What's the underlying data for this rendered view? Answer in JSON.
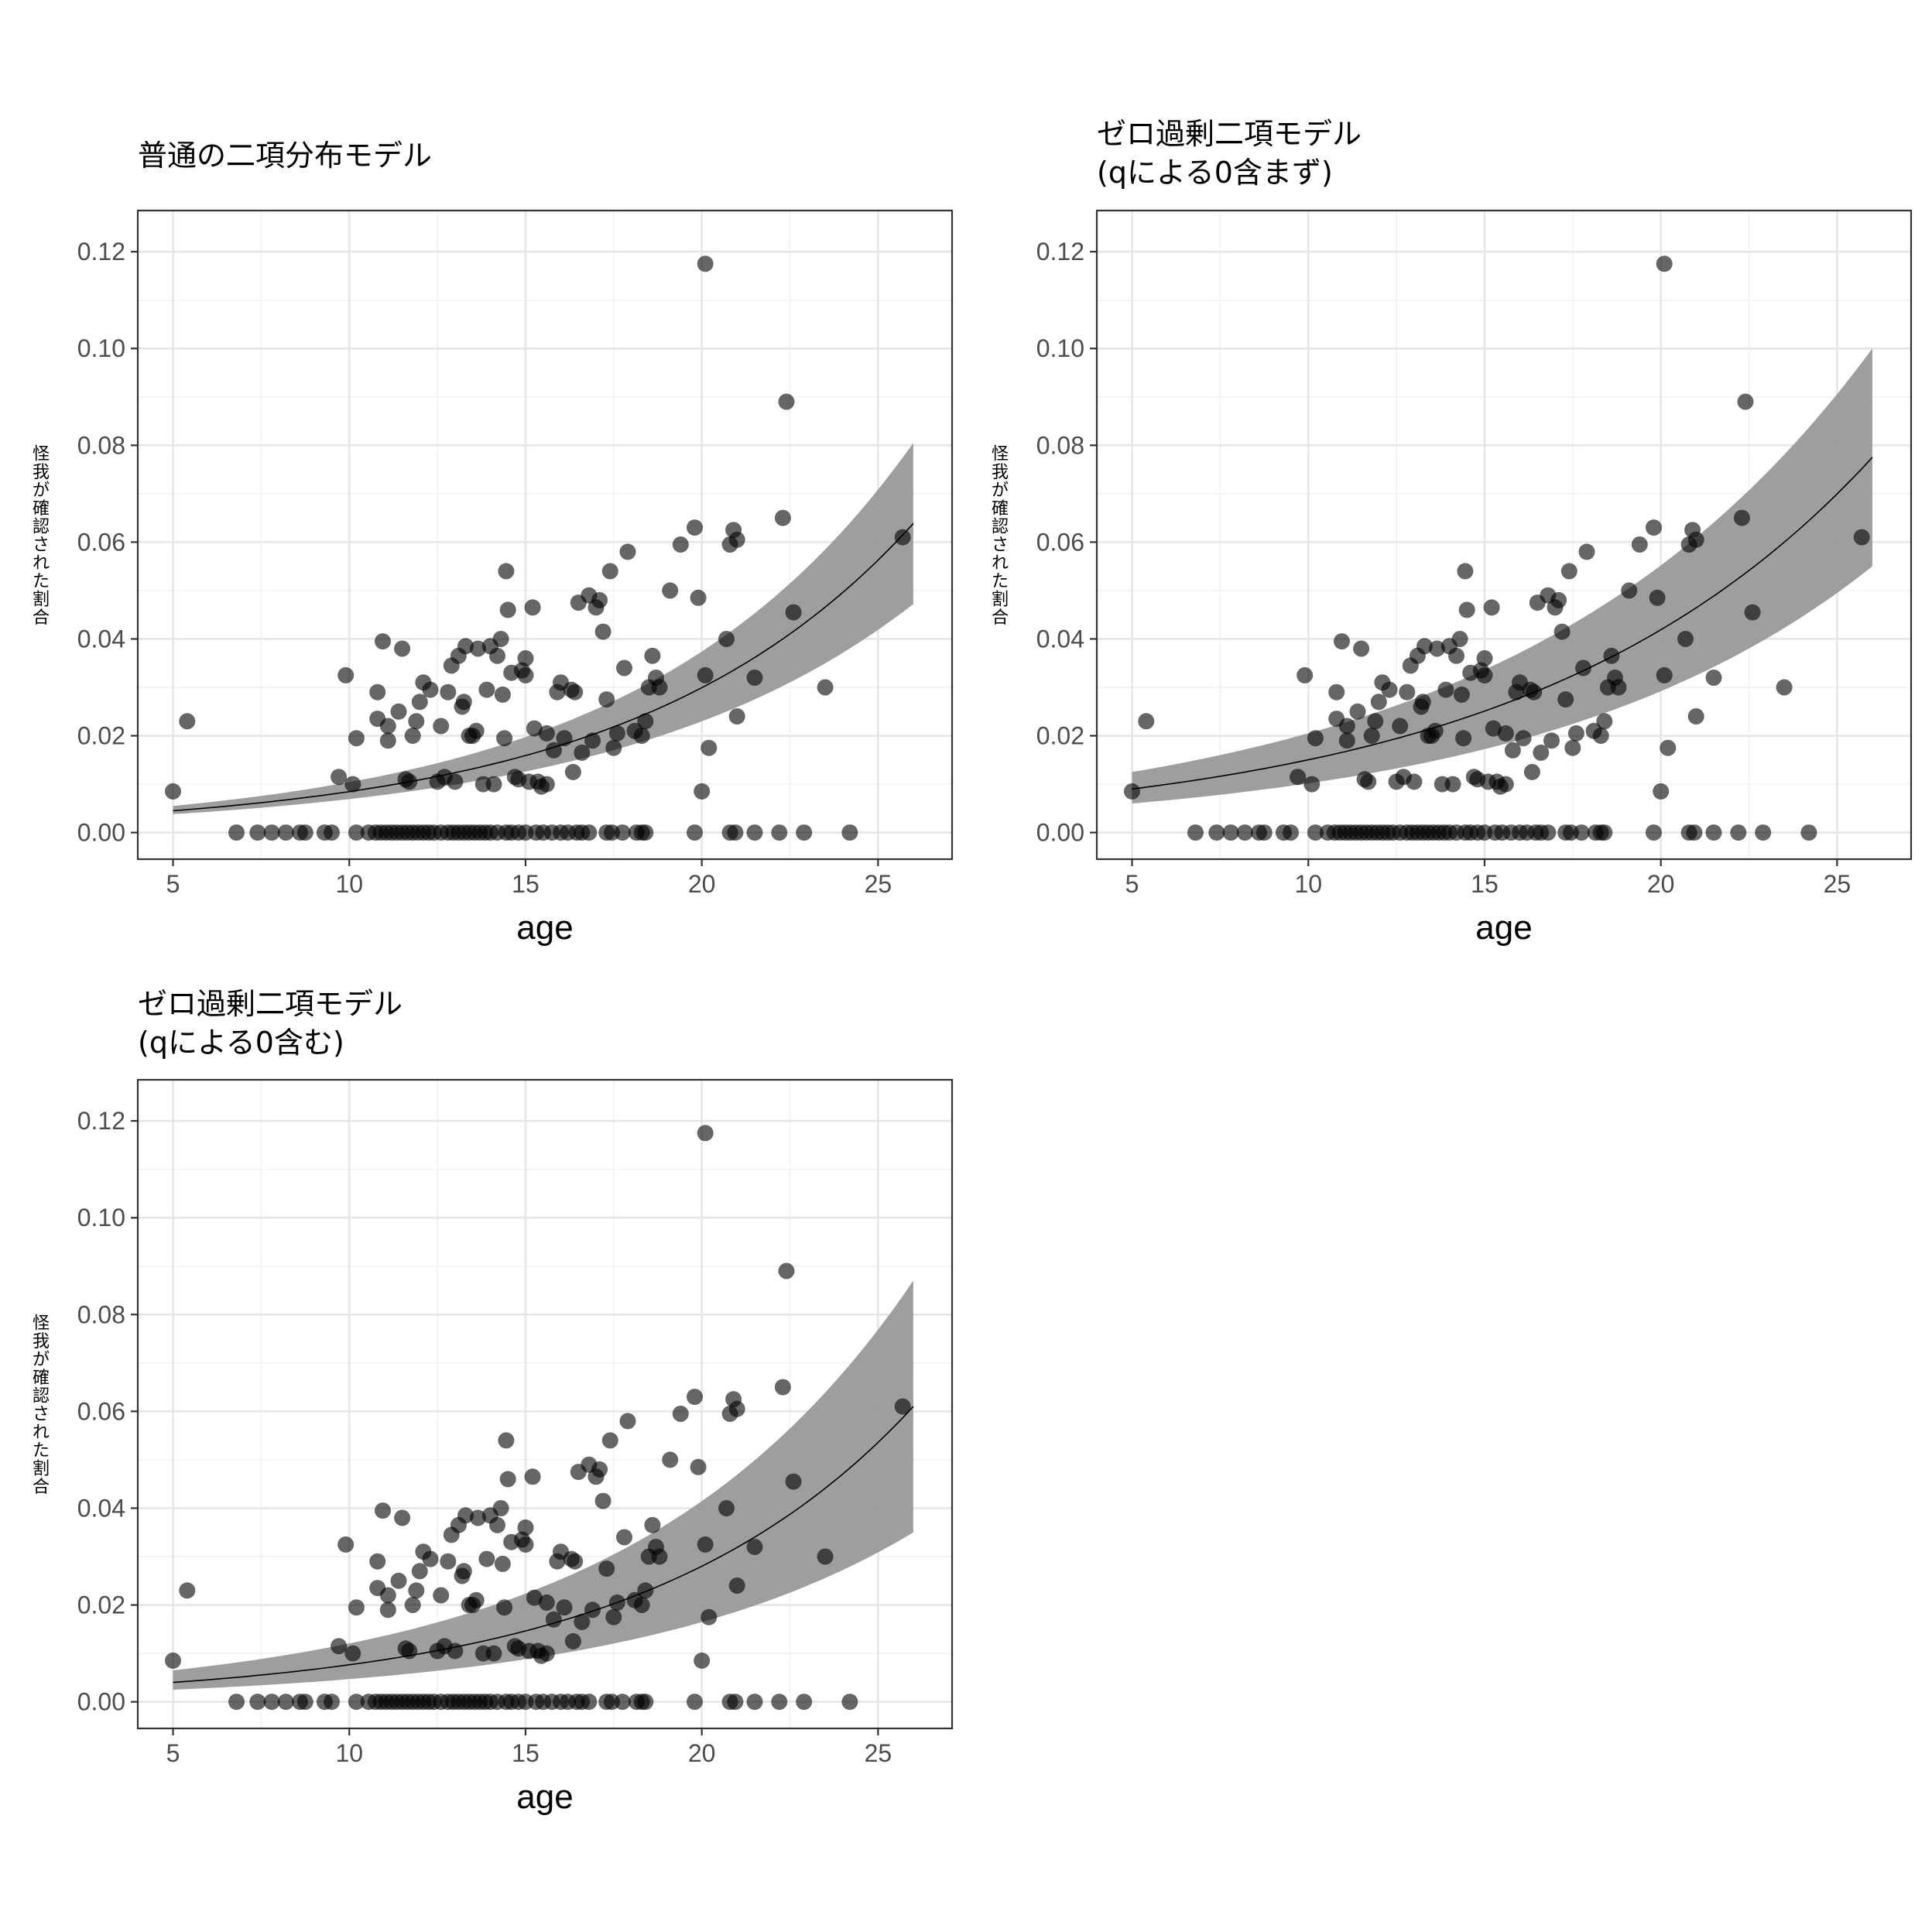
{
  "chart_data": [
    {
      "type": "scatter",
      "title": "普通の二項分布モデル",
      "subtitle": "",
      "xlabel": "age",
      "ylabel": "怪我が確認された割合",
      "xlim": [
        4,
        27.1
      ],
      "ylim": [
        -0.0055,
        0.1285
      ],
      "xticks": [
        5,
        10,
        15,
        20,
        25
      ],
      "yticks": [
        0.0,
        0.02,
        0.04,
        0.06,
        0.08,
        0.1,
        0.12
      ],
      "ytick_labels": [
        "0.00",
        "0.02",
        "0.04",
        "0.06",
        "0.08",
        "0.10",
        "0.12"
      ],
      "grid": true,
      "fit": {
        "a": 0.0045,
        "b": 0.02073
      },
      "band": {
        "lower_end": 0.0472,
        "upper_end": 0.0805,
        "start_lower": 0.0038,
        "start_upper": 0.0055
      }
    },
    {
      "type": "scatter",
      "title": "ゼロ過剰二項モデル",
      "subtitle": "(qによる0含まず)",
      "xlabel": "age",
      "ylabel": "怪我が確認された割合",
      "xlim": [
        4,
        27.1
      ],
      "ylim": [
        -0.0055,
        0.1285
      ],
      "xticks": [
        5,
        10,
        15,
        20,
        25
      ],
      "yticks": [
        0.0,
        0.02,
        0.04,
        0.06,
        0.08,
        0.1,
        0.12
      ],
      "ytick_labels": [
        "0.00",
        "0.02",
        "0.04",
        "0.06",
        "0.08",
        "0.10",
        "0.12"
      ],
      "grid": true,
      "fit": {
        "a": 0.009,
        "b": 0.0652
      },
      "band": {
        "lower_end": 0.055,
        "upper_end": 0.1,
        "start_lower": 0.006,
        "start_upper": 0.0125
      }
    },
    {
      "type": "scatter",
      "title": "ゼロ過剰二項モデル",
      "subtitle": "(qによる0含む)",
      "xlabel": "age",
      "ylabel": "怪我が確認された割合",
      "xlim": [
        4,
        27.1
      ],
      "ylim": [
        -0.0055,
        0.1285
      ],
      "xticks": [
        5,
        10,
        15,
        20,
        25
      ],
      "yticks": [
        0.0,
        0.02,
        0.04,
        0.06,
        0.08,
        0.1,
        0.12
      ],
      "ytick_labels": [
        "0.00",
        "0.02",
        "0.04",
        "0.06",
        "0.08",
        "0.10",
        "0.12"
      ],
      "grid": true,
      "fit": {
        "a": 0.004,
        "b": 0.0616
      },
      "band": {
        "lower_end": 0.035,
        "upper_end": 0.087,
        "start_lower": 0.0025,
        "start_upper": 0.0065
      }
    }
  ],
  "points": [
    [
      5.0,
      0.0085
    ],
    [
      5.4,
      0.023
    ],
    [
      9.7,
      0.0115
    ],
    [
      9.9,
      0.0325
    ],
    [
      10.1,
      0.01
    ],
    [
      10.2,
      0.0195
    ],
    [
      10.8,
      0.029
    ],
    [
      10.8,
      0.0235
    ],
    [
      10.95,
      0.0395
    ],
    [
      11.1,
      0.022
    ],
    [
      11.1,
      0.019
    ],
    [
      11.4,
      0.025
    ],
    [
      11.5,
      0.038
    ],
    [
      11.6,
      0.011
    ],
    [
      11.7,
      0.0105
    ],
    [
      11.8,
      0.02
    ],
    [
      11.9,
      0.023
    ],
    [
      12.0,
      0.027
    ],
    [
      12.1,
      0.031
    ],
    [
      12.3,
      0.0295
    ],
    [
      12.5,
      0.0105
    ],
    [
      12.6,
      0.022
    ],
    [
      12.7,
      0.0115
    ],
    [
      12.8,
      0.029
    ],
    [
      12.9,
      0.0345
    ],
    [
      13.0,
      0.0105
    ],
    [
      13.1,
      0.0365
    ],
    [
      13.2,
      0.026
    ],
    [
      13.25,
      0.027
    ],
    [
      13.3,
      0.0385
    ],
    [
      13.4,
      0.02
    ],
    [
      13.5,
      0.02
    ],
    [
      13.6,
      0.021
    ],
    [
      13.65,
      0.038
    ],
    [
      13.8,
      0.01
    ],
    [
      13.9,
      0.0295
    ],
    [
      14.0,
      0.0385
    ],
    [
      14.1,
      0.01
    ],
    [
      14.2,
      0.0365
    ],
    [
      14.3,
      0.04
    ],
    [
      14.35,
      0.0285
    ],
    [
      14.4,
      0.0195
    ],
    [
      14.45,
      0.054
    ],
    [
      14.5,
      0.046
    ],
    [
      14.6,
      0.033
    ],
    [
      14.7,
      0.0115
    ],
    [
      14.8,
      0.011
    ],
    [
      14.9,
      0.0335
    ],
    [
      15.0,
      0.036
    ],
    [
      15.0,
      0.0325
    ],
    [
      15.1,
      0.0105
    ],
    [
      15.2,
      0.0465
    ],
    [
      15.25,
      0.0215
    ],
    [
      15.35,
      0.0105
    ],
    [
      15.45,
      0.0095
    ],
    [
      15.6,
      0.01
    ],
    [
      15.6,
      0.0205
    ],
    [
      15.8,
      0.017
    ],
    [
      15.9,
      0.029
    ],
    [
      16.0,
      0.031
    ],
    [
      16.1,
      0.0195
    ],
    [
      16.3,
      0.0295
    ],
    [
      16.35,
      0.0125
    ],
    [
      16.4,
      0.029
    ],
    [
      16.5,
      0.0475
    ],
    [
      16.6,
      0.0165
    ],
    [
      16.8,
      0.049
    ],
    [
      16.9,
      0.019
    ],
    [
      17.0,
      0.0465
    ],
    [
      17.1,
      0.048
    ],
    [
      17.2,
      0.0415
    ],
    [
      17.3,
      0.0275
    ],
    [
      17.4,
      0.054
    ],
    [
      17.5,
      0.0175
    ],
    [
      17.6,
      0.0205
    ],
    [
      17.8,
      0.034
    ],
    [
      17.9,
      0.058
    ],
    [
      18.1,
      0.021
    ],
    [
      18.3,
      0.02
    ],
    [
      18.4,
      0.023
    ],
    [
      18.5,
      0.03
    ],
    [
      18.6,
      0.0365
    ],
    [
      18.7,
      0.032
    ],
    [
      18.8,
      0.03
    ],
    [
      19.1,
      0.05
    ],
    [
      19.4,
      0.0595
    ],
    [
      19.8,
      0.063
    ],
    [
      19.9,
      0.0485
    ],
    [
      20.0,
      0.0085
    ],
    [
      20.1,
      0.0325
    ],
    [
      20.1,
      0.1175
    ],
    [
      20.2,
      0.0175
    ],
    [
      20.7,
      0.04
    ],
    [
      20.8,
      0.0595
    ],
    [
      20.9,
      0.0625
    ],
    [
      21.0,
      0.024
    ],
    [
      21.0,
      0.0605
    ],
    [
      21.5,
      0.032
    ],
    [
      22.3,
      0.065
    ],
    [
      22.4,
      0.089
    ],
    [
      22.6,
      0.0455
    ],
    [
      23.5,
      0.03
    ],
    [
      25.7,
      0.061
    ],
    [
      6.8,
      0
    ],
    [
      7.4,
      0
    ],
    [
      7.8,
      0
    ],
    [
      8.2,
      0
    ],
    [
      8.6,
      0
    ],
    [
      8.75,
      0
    ],
    [
      9.3,
      0
    ],
    [
      9.5,
      0
    ],
    [
      10.2,
      0
    ],
    [
      10.55,
      0
    ],
    [
      10.75,
      0
    ],
    [
      10.9,
      0
    ],
    [
      11.05,
      0
    ],
    [
      11.2,
      0
    ],
    [
      11.35,
      0
    ],
    [
      11.5,
      0
    ],
    [
      11.65,
      0
    ],
    [
      11.8,
      0
    ],
    [
      11.95,
      0
    ],
    [
      12.1,
      0
    ],
    [
      12.25,
      0
    ],
    [
      12.4,
      0
    ],
    [
      12.6,
      0
    ],
    [
      12.8,
      0
    ],
    [
      12.95,
      0
    ],
    [
      13.1,
      0
    ],
    [
      13.25,
      0
    ],
    [
      13.4,
      0
    ],
    [
      13.55,
      0
    ],
    [
      13.7,
      0
    ],
    [
      13.85,
      0
    ],
    [
      14.0,
      0
    ],
    [
      14.2,
      0
    ],
    [
      14.45,
      0
    ],
    [
      14.6,
      0
    ],
    [
      14.8,
      0
    ],
    [
      15.0,
      0
    ],
    [
      15.3,
      0
    ],
    [
      15.5,
      0
    ],
    [
      15.75,
      0
    ],
    [
      16.0,
      0
    ],
    [
      16.2,
      0
    ],
    [
      16.45,
      0
    ],
    [
      16.6,
      0
    ],
    [
      16.8,
      0
    ],
    [
      17.3,
      0
    ],
    [
      17.45,
      0
    ],
    [
      17.75,
      0
    ],
    [
      18.15,
      0
    ],
    [
      18.3,
      0
    ],
    [
      18.4,
      0
    ],
    [
      19.8,
      0
    ],
    [
      20.8,
      0
    ],
    [
      20.95,
      0
    ],
    [
      21.5,
      0
    ],
    [
      22.2,
      0
    ],
    [
      22.9,
      0
    ],
    [
      24.2,
      0
    ]
  ]
}
